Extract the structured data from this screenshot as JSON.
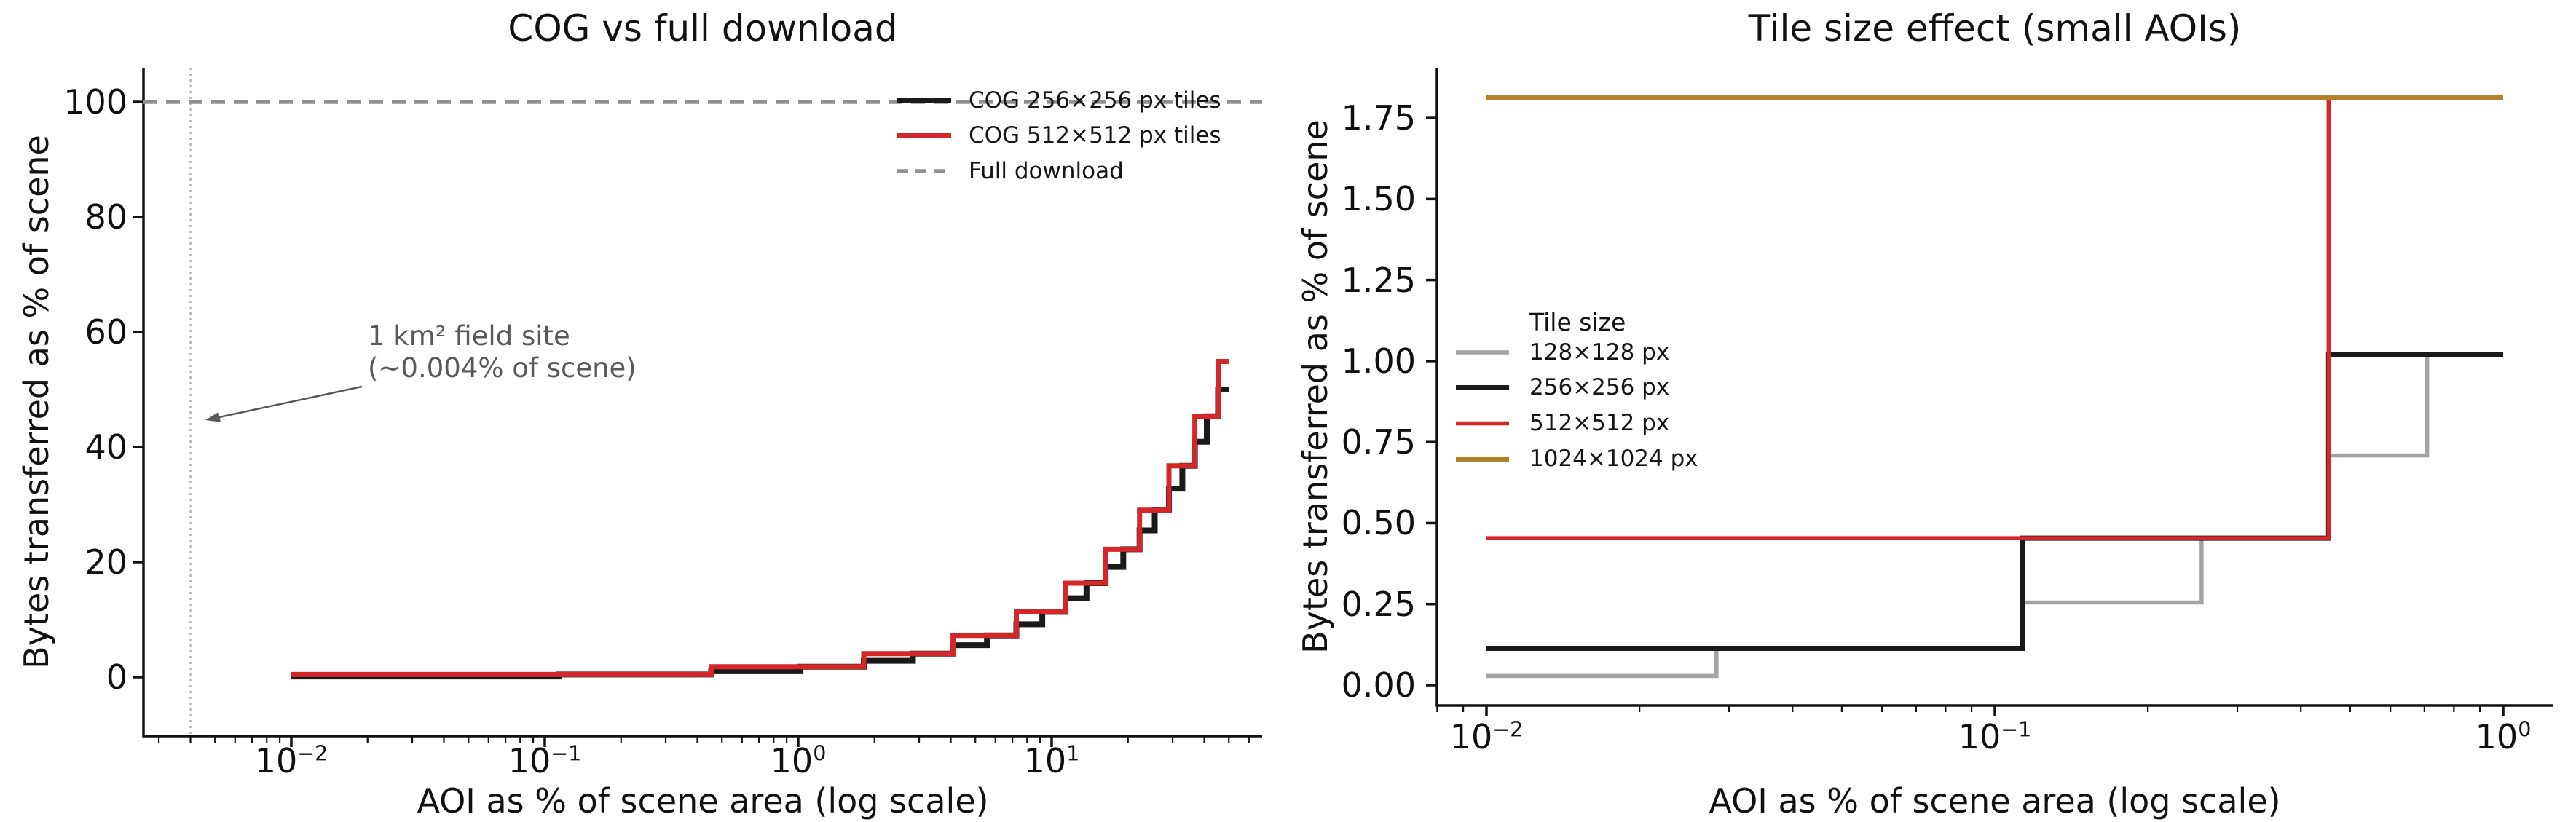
{
  "figure": {
    "background": "#ffffff"
  },
  "chart_data": [
    {
      "id": "cog-vs-full-download",
      "type": "line",
      "title": "COG vs full download",
      "xlabel": "AOI as % of scene area (log scale)",
      "ylabel": "Bytes transferred as % of scene",
      "xscale": "log",
      "xlim": [
        0.0026,
        67.6
      ],
      "ylim": [
        -5.1,
        106
      ],
      "grid": false,
      "legend_position": "upper right",
      "xticks": [
        {
          "v": 0.01,
          "base": "10",
          "exp": "−2"
        },
        {
          "v": 0.1,
          "base": "10",
          "exp": "−1"
        },
        {
          "v": 1,
          "base": "10",
          "exp": "0"
        },
        {
          "v": 10,
          "base": "10",
          "exp": "1"
        }
      ],
      "yticks": [
        {
          "v": 0,
          "label": "0"
        },
        {
          "v": 20,
          "label": "20"
        },
        {
          "v": 40,
          "label": "40"
        },
        {
          "v": 60,
          "label": "60"
        },
        {
          "v": 80,
          "label": "80"
        },
        {
          "v": 100,
          "label": "100"
        }
      ],
      "series": [
        {
          "name": "COG 256×256 px tiles",
          "color": "#1a1a1a",
          "style": "solid",
          "width": 8,
          "kind": "staircase",
          "x_start": 0.01,
          "x_end": 50,
          "step_x_equals_level": true,
          "levels": [
            0.11338,
            0.45351,
            1.02041,
            1.81406,
            2.83447,
            4.08163,
            5.55556,
            7.25624,
            9.18367,
            11.33787,
            13.71882,
            16.32653,
            19.161,
            22.22222,
            25.5102,
            29.02494,
            32.76644,
            36.73469,
            40.92971,
            45.35147,
            50.0
          ]
        },
        {
          "name": "COG 512×512 px tiles",
          "color": "#d62728",
          "style": "solid",
          "width": 7,
          "kind": "staircase",
          "x_start": 0.01,
          "x_end": 50,
          "step_x_equals_level": true,
          "levels": [
            0.45351,
            1.81406,
            4.08163,
            7.25624,
            11.33787,
            16.32653,
            22.22222,
            29.02494,
            36.73469,
            45.35147,
            54.87528
          ]
        },
        {
          "name": "Full download",
          "color": "#909090",
          "style": "dashed",
          "width": 5.5,
          "kind": "hline",
          "y": 100
        }
      ],
      "annotation": {
        "lines": [
          "1 km² field site",
          "(~0.004% of scene)"
        ],
        "marker_x": 0.004,
        "marker_style": "dotted",
        "marker_color": "#b3b3b3",
        "arrow_color": "#595959"
      }
    },
    {
      "id": "tile-size-effect",
      "type": "line",
      "title": "Tile size effect (small AOIs)",
      "xlabel": "AOI as % of scene area (log scale)",
      "ylabel": "Bytes transferred as % of scene",
      "xscale": "log",
      "xlim": [
        0.008,
        1.25
      ],
      "ylim": [
        -0.06,
        1.9
      ],
      "grid": false,
      "legend_title": "Tile size",
      "legend_position": "center left",
      "xticks": [
        {
          "v": 0.01,
          "base": "10",
          "exp": "−2"
        },
        {
          "v": 0.1,
          "base": "10",
          "exp": "−1"
        },
        {
          "v": 1,
          "base": "10",
          "exp": "0"
        }
      ],
      "yticks": [
        {
          "v": 0,
          "label": "0.00"
        },
        {
          "v": 0.25,
          "label": "0.25"
        },
        {
          "v": 0.5,
          "label": "0.50"
        },
        {
          "v": 0.75,
          "label": "0.75"
        },
        {
          "v": 1.0,
          "label": "1.00"
        },
        {
          "v": 1.25,
          "label": "1.25"
        },
        {
          "v": 1.5,
          "label": "1.50"
        },
        {
          "v": 1.75,
          "label": "1.75"
        }
      ],
      "series": [
        {
          "name": "128×128 px",
          "color": "#a3a3a3",
          "style": "solid",
          "width": 5.5,
          "kind": "staircase",
          "x_start": 0.01,
          "x_end": 1.0,
          "step_x_equals_level": true,
          "levels": [
            0.02834,
            0.11338,
            0.2551,
            0.45351,
            0.70861,
            1.02041
          ]
        },
        {
          "name": "256×256 px",
          "color": "#1a1a1a",
          "style": "solid",
          "width": 7,
          "kind": "staircase",
          "x_start": 0.01,
          "x_end": 1.0,
          "step_x_equals_level": true,
          "levels": [
            0.11338,
            0.45351,
            1.02041
          ]
        },
        {
          "name": "512×512 px",
          "color": "#d62728",
          "style": "solid",
          "width": 5.5,
          "kind": "staircase",
          "x_start": 0.01,
          "x_end": 1.0,
          "step_x_equals_level": true,
          "levels": [
            0.45351,
            1.81406
          ]
        },
        {
          "name": "1024×1024 px",
          "color": "#b4812b",
          "style": "solid",
          "width": 7,
          "kind": "staircase",
          "x_start": 0.01,
          "x_end": 1.0,
          "step_x_equals_level": true,
          "levels": [
            1.81406
          ]
        }
      ]
    }
  ]
}
